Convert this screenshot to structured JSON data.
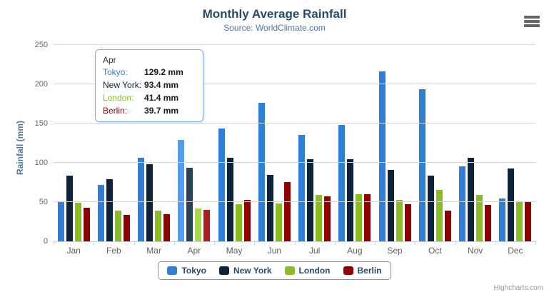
{
  "title": "Monthly Average Rainfall",
  "subtitle": "Source: WorldClimate.com",
  "credits": "Highcharts.com",
  "context_menu_icon": "hamburger-menu",
  "chart_data": {
    "type": "bar",
    "title": "Monthly Average Rainfall",
    "subtitle": "Source: WorldClimate.com",
    "xlabel": "",
    "ylabel": "Rainfall (mm)",
    "ylim": [
      0,
      250
    ],
    "ytick_interval": 50,
    "yticks": [
      0,
      50,
      100,
      150,
      200,
      250
    ],
    "grid": true,
    "legend_position": "bottom",
    "categories": [
      "Jan",
      "Feb",
      "Mar",
      "Apr",
      "May",
      "Jun",
      "Jul",
      "Aug",
      "Sep",
      "Oct",
      "Nov",
      "Dec"
    ],
    "series": [
      {
        "name": "Tokyo",
        "color": "#2f7ed8",
        "values": [
          49.9,
          71.5,
          106.4,
          129.2,
          144.0,
          176.0,
          135.6,
          148.5,
          216.4,
          194.1,
          95.6,
          54.4
        ]
      },
      {
        "name": "New York",
        "color": "#0d233a",
        "values": [
          83.6,
          78.8,
          98.5,
          93.4,
          106.0,
          84.5,
          105.0,
          104.3,
          91.2,
          83.5,
          106.6,
          92.3
        ]
      },
      {
        "name": "London",
        "color": "#8bbc21",
        "values": [
          48.9,
          38.8,
          39.3,
          41.4,
          47.0,
          48.3,
          59.0,
          59.6,
          52.4,
          65.2,
          59.3,
          51.2
        ]
      },
      {
        "name": "Berlin",
        "color": "#910000",
        "values": [
          42.4,
          33.2,
          34.5,
          39.7,
          52.6,
          75.5,
          57.4,
          60.4,
          47.6,
          39.1,
          46.8,
          51.1
        ]
      }
    ],
    "hover_category": "Apr"
  },
  "tooltip": {
    "header": "Apr",
    "rows": [
      {
        "label": "Tokyo:",
        "color": "#2f7ed8",
        "value": "129.2 mm"
      },
      {
        "label": "New York:",
        "color": "#0d233a",
        "value": "93.4 mm"
      },
      {
        "label": "London:",
        "color": "#8bbc21",
        "value": "41.4 mm"
      },
      {
        "label": "Berlin:",
        "color": "#910000",
        "value": "39.7 mm"
      }
    ]
  },
  "colors": {
    "title": "#274b6d",
    "subtitle": "#4d759e",
    "axis_label": "#666666",
    "gridline": "#d6d6d6",
    "axis_line": "#c0d0e0"
  }
}
